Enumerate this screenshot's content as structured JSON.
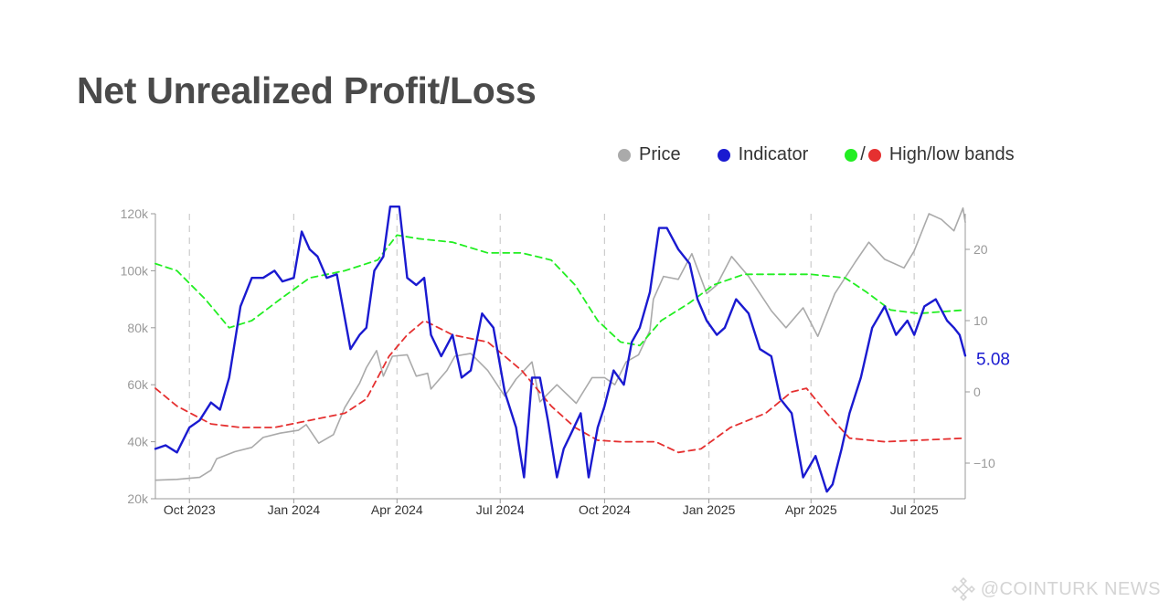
{
  "title": "Net Unrealized Profit/Loss",
  "legend": {
    "price_label": "Price",
    "indicator_label": "Indicator",
    "bands_label": "High/low bands",
    "bands_separator": "/"
  },
  "colors": {
    "price": "#aaaaaa",
    "indicator": "#1a1ad0",
    "high_band": "#22ee22",
    "low_band": "#e53030",
    "title": "#4a4a4a"
  },
  "watermark": "@COINTURK NEWS",
  "chart_data": {
    "type": "line",
    "title": "Net Unrealized Profit/Loss",
    "x_tick_labels": [
      "Oct 2023",
      "Jan 2024",
      "Apr 2024",
      "Jul 2024",
      "Oct 2024",
      "Jan 2025",
      "Apr 2025",
      "Jul 2025"
    ],
    "x_ticks": [
      "2023-10-01",
      "2024-01-01",
      "2024-04-01",
      "2024-07-01",
      "2024-10-01",
      "2025-01-01",
      "2025-04-01",
      "2025-07-01"
    ],
    "xlim": [
      "2023-09-01",
      "2025-08-15"
    ],
    "y_left": {
      "label": "",
      "ylim": [
        20000,
        120000
      ],
      "ticks": [
        20000,
        40000,
        60000,
        80000,
        100000,
        120000
      ],
      "tick_labels": [
        "20k",
        "40k",
        "60k",
        "80k",
        "100k",
        "120k"
      ]
    },
    "y_right": {
      "label": "",
      "ylim": [
        -15,
        25
      ],
      "ticks": [
        -10,
        0,
        10,
        20
      ],
      "tick_labels": [
        "−10",
        "0",
        "10",
        "20"
      ]
    },
    "grid": "vertical dashed at x ticks",
    "last_value_label": "5.08",
    "series": [
      {
        "name": "Price",
        "axis": "left",
        "style": "solid",
        "points": [
          [
            "2023-09-01",
            26500
          ],
          [
            "2023-09-20",
            26800
          ],
          [
            "2023-10-10",
            27500
          ],
          [
            "2023-10-20",
            30000
          ],
          [
            "2023-10-25",
            34000
          ],
          [
            "2023-11-10",
            36500
          ],
          [
            "2023-11-25",
            38000
          ],
          [
            "2023-12-05",
            41500
          ],
          [
            "2023-12-20",
            43000
          ],
          [
            "2024-01-05",
            44000
          ],
          [
            "2024-01-12",
            46000
          ],
          [
            "2024-01-23",
            39500
          ],
          [
            "2024-02-05",
            42500
          ],
          [
            "2024-02-15",
            52000
          ],
          [
            "2024-02-28",
            60500
          ],
          [
            "2024-03-05",
            66000
          ],
          [
            "2024-03-14",
            72000
          ],
          [
            "2024-03-20",
            63000
          ],
          [
            "2024-03-28",
            70000
          ],
          [
            "2024-04-10",
            70500
          ],
          [
            "2024-04-18",
            63000
          ],
          [
            "2024-04-28",
            64000
          ],
          [
            "2024-05-01",
            58500
          ],
          [
            "2024-05-15",
            65000
          ],
          [
            "2024-05-22",
            70000
          ],
          [
            "2024-06-05",
            71000
          ],
          [
            "2024-06-20",
            65000
          ],
          [
            "2024-07-05",
            56000
          ],
          [
            "2024-07-15",
            62000
          ],
          [
            "2024-07-29",
            68000
          ],
          [
            "2024-08-05",
            54000
          ],
          [
            "2024-08-20",
            60000
          ],
          [
            "2024-09-06",
            53500
          ],
          [
            "2024-09-20",
            62500
          ],
          [
            "2024-10-01",
            62500
          ],
          [
            "2024-10-10",
            60000
          ],
          [
            "2024-10-20",
            68000
          ],
          [
            "2024-10-31",
            70500
          ],
          [
            "2024-11-10",
            79000
          ],
          [
            "2024-11-13",
            90000
          ],
          [
            "2024-11-22",
            98000
          ],
          [
            "2024-12-05",
            97000
          ],
          [
            "2024-12-17",
            106000
          ],
          [
            "2024-12-30",
            92000
          ],
          [
            "2025-01-08",
            95000
          ],
          [
            "2025-01-21",
            105000
          ],
          [
            "2025-02-05",
            98000
          ],
          [
            "2025-02-25",
            86000
          ],
          [
            "2025-03-10",
            80000
          ],
          [
            "2025-03-25",
            87000
          ],
          [
            "2025-04-07",
            77000
          ],
          [
            "2025-04-22",
            92000
          ],
          [
            "2025-05-10",
            103000
          ],
          [
            "2025-05-22",
            110000
          ],
          [
            "2025-06-05",
            104000
          ],
          [
            "2025-06-22",
            101000
          ],
          [
            "2025-07-01",
            107000
          ],
          [
            "2025-07-14",
            120000
          ],
          [
            "2025-07-25",
            118000
          ],
          [
            "2025-08-05",
            114000
          ],
          [
            "2025-08-13",
            122000
          ],
          [
            "2025-08-15",
            117000
          ]
        ]
      },
      {
        "name": "Indicator",
        "axis": "right",
        "style": "solid",
        "points": [
          [
            "2023-09-01",
            -8
          ],
          [
            "2023-09-10",
            -7.5
          ],
          [
            "2023-09-20",
            -8.5
          ],
          [
            "2023-10-01",
            -5
          ],
          [
            "2023-10-10",
            -4
          ],
          [
            "2023-10-20",
            -1.5
          ],
          [
            "2023-10-28",
            -2.5
          ],
          [
            "2023-11-05",
            2
          ],
          [
            "2023-11-15",
            12
          ],
          [
            "2023-11-25",
            16
          ],
          [
            "2023-12-05",
            16
          ],
          [
            "2023-12-15",
            17
          ],
          [
            "2023-12-22",
            15.5
          ],
          [
            "2024-01-01",
            16
          ],
          [
            "2024-01-08",
            22.5
          ],
          [
            "2024-01-15",
            20
          ],
          [
            "2024-01-22",
            19
          ],
          [
            "2024-01-30",
            16
          ],
          [
            "2024-02-08",
            16.5
          ],
          [
            "2024-02-20",
            6
          ],
          [
            "2024-02-28",
            8
          ],
          [
            "2024-03-05",
            9
          ],
          [
            "2024-03-12",
            17
          ],
          [
            "2024-03-20",
            19
          ],
          [
            "2024-03-26",
            26
          ],
          [
            "2024-04-03",
            26
          ],
          [
            "2024-04-10",
            16
          ],
          [
            "2024-04-18",
            15
          ],
          [
            "2024-04-25",
            16
          ],
          [
            "2024-05-01",
            8
          ],
          [
            "2024-05-10",
            5
          ],
          [
            "2024-05-20",
            8
          ],
          [
            "2024-05-28",
            2
          ],
          [
            "2024-06-05",
            3
          ],
          [
            "2024-06-15",
            11
          ],
          [
            "2024-06-25",
            9
          ],
          [
            "2024-07-05",
            0
          ],
          [
            "2024-07-15",
            -5
          ],
          [
            "2024-07-22",
            -12
          ],
          [
            "2024-07-29",
            2
          ],
          [
            "2024-08-05",
            2
          ],
          [
            "2024-08-12",
            -4
          ],
          [
            "2024-08-20",
            -12
          ],
          [
            "2024-08-26",
            -8
          ],
          [
            "2024-09-01",
            -6
          ],
          [
            "2024-09-10",
            -3
          ],
          [
            "2024-09-17",
            -12
          ],
          [
            "2024-09-25",
            -5
          ],
          [
            "2024-10-01",
            -2
          ],
          [
            "2024-10-09",
            3
          ],
          [
            "2024-10-18",
            1
          ],
          [
            "2024-10-25",
            7
          ],
          [
            "2024-11-01",
            9
          ],
          [
            "2024-11-10",
            14
          ],
          [
            "2024-11-18",
            23
          ],
          [
            "2024-11-25",
            23
          ],
          [
            "2024-12-05",
            20
          ],
          [
            "2024-12-15",
            18
          ],
          [
            "2024-12-22",
            13
          ],
          [
            "2024-12-30",
            10
          ],
          [
            "2025-01-08",
            8
          ],
          [
            "2025-01-15",
            9
          ],
          [
            "2025-01-25",
            13
          ],
          [
            "2025-02-05",
            11
          ],
          [
            "2025-02-15",
            6
          ],
          [
            "2025-02-25",
            5
          ],
          [
            "2025-03-05",
            -1
          ],
          [
            "2025-03-15",
            -3
          ],
          [
            "2025-03-25",
            -12
          ],
          [
            "2025-04-05",
            -9
          ],
          [
            "2025-04-15",
            -14
          ],
          [
            "2025-04-20",
            -13
          ],
          [
            "2025-04-28",
            -8
          ],
          [
            "2025-05-05",
            -3
          ],
          [
            "2025-05-15",
            2
          ],
          [
            "2025-05-25",
            9
          ],
          [
            "2025-06-05",
            12
          ],
          [
            "2025-06-15",
            8
          ],
          [
            "2025-06-25",
            10
          ],
          [
            "2025-07-01",
            8
          ],
          [
            "2025-07-10",
            12
          ],
          [
            "2025-07-20",
            13
          ],
          [
            "2025-07-30",
            10
          ],
          [
            "2025-08-05",
            9
          ],
          [
            "2025-08-10",
            8
          ],
          [
            "2025-08-15",
            5.08
          ]
        ]
      },
      {
        "name": "High band",
        "axis": "right",
        "style": "dashed",
        "points": [
          [
            "2023-09-01",
            18
          ],
          [
            "2023-09-20",
            17
          ],
          [
            "2023-10-15",
            13
          ],
          [
            "2023-11-05",
            9
          ],
          [
            "2023-11-25",
            10
          ],
          [
            "2023-12-20",
            13
          ],
          [
            "2024-01-15",
            16
          ],
          [
            "2024-02-15",
            17
          ],
          [
            "2024-03-15",
            18.5
          ],
          [
            "2024-04-01",
            22
          ],
          [
            "2024-04-20",
            21.5
          ],
          [
            "2024-05-20",
            21
          ],
          [
            "2024-06-20",
            19.5
          ],
          [
            "2024-07-20",
            19.5
          ],
          [
            "2024-08-15",
            18.5
          ],
          [
            "2024-09-05",
            15
          ],
          [
            "2024-09-25",
            10
          ],
          [
            "2024-10-15",
            7
          ],
          [
            "2024-11-01",
            6.5
          ],
          [
            "2024-11-20",
            10
          ],
          [
            "2024-12-15",
            12.5
          ],
          [
            "2025-01-05",
            15
          ],
          [
            "2025-02-01",
            16.5
          ],
          [
            "2025-03-01",
            16.5
          ],
          [
            "2025-04-01",
            16.5
          ],
          [
            "2025-05-01",
            16
          ],
          [
            "2025-05-20",
            14
          ],
          [
            "2025-06-10",
            11.5
          ],
          [
            "2025-07-05",
            11
          ],
          [
            "2025-08-15",
            11.5
          ]
        ]
      },
      {
        "name": "Low band",
        "axis": "right",
        "style": "dashed",
        "points": [
          [
            "2023-09-01",
            0.5
          ],
          [
            "2023-09-20",
            -2
          ],
          [
            "2023-10-20",
            -4.5
          ],
          [
            "2023-11-15",
            -5
          ],
          [
            "2023-12-15",
            -5
          ],
          [
            "2024-01-15",
            -4
          ],
          [
            "2024-02-15",
            -3
          ],
          [
            "2024-03-05",
            -1
          ],
          [
            "2024-03-25",
            5
          ],
          [
            "2024-04-10",
            8
          ],
          [
            "2024-04-25",
            10
          ],
          [
            "2024-05-20",
            8
          ],
          [
            "2024-06-20",
            7
          ],
          [
            "2024-07-20",
            3
          ],
          [
            "2024-08-15",
            -2
          ],
          [
            "2024-09-05",
            -5
          ],
          [
            "2024-09-25",
            -6.8
          ],
          [
            "2024-10-15",
            -7
          ],
          [
            "2024-11-15",
            -7
          ],
          [
            "2024-12-05",
            -8.5
          ],
          [
            "2024-12-25",
            -8
          ],
          [
            "2025-01-20",
            -5
          ],
          [
            "2025-02-20",
            -3
          ],
          [
            "2025-03-15",
            0
          ],
          [
            "2025-03-28",
            0.5
          ],
          [
            "2025-04-15",
            -3
          ],
          [
            "2025-05-05",
            -6.5
          ],
          [
            "2025-06-05",
            -7
          ],
          [
            "2025-08-15",
            -6.5
          ]
        ]
      }
    ]
  }
}
